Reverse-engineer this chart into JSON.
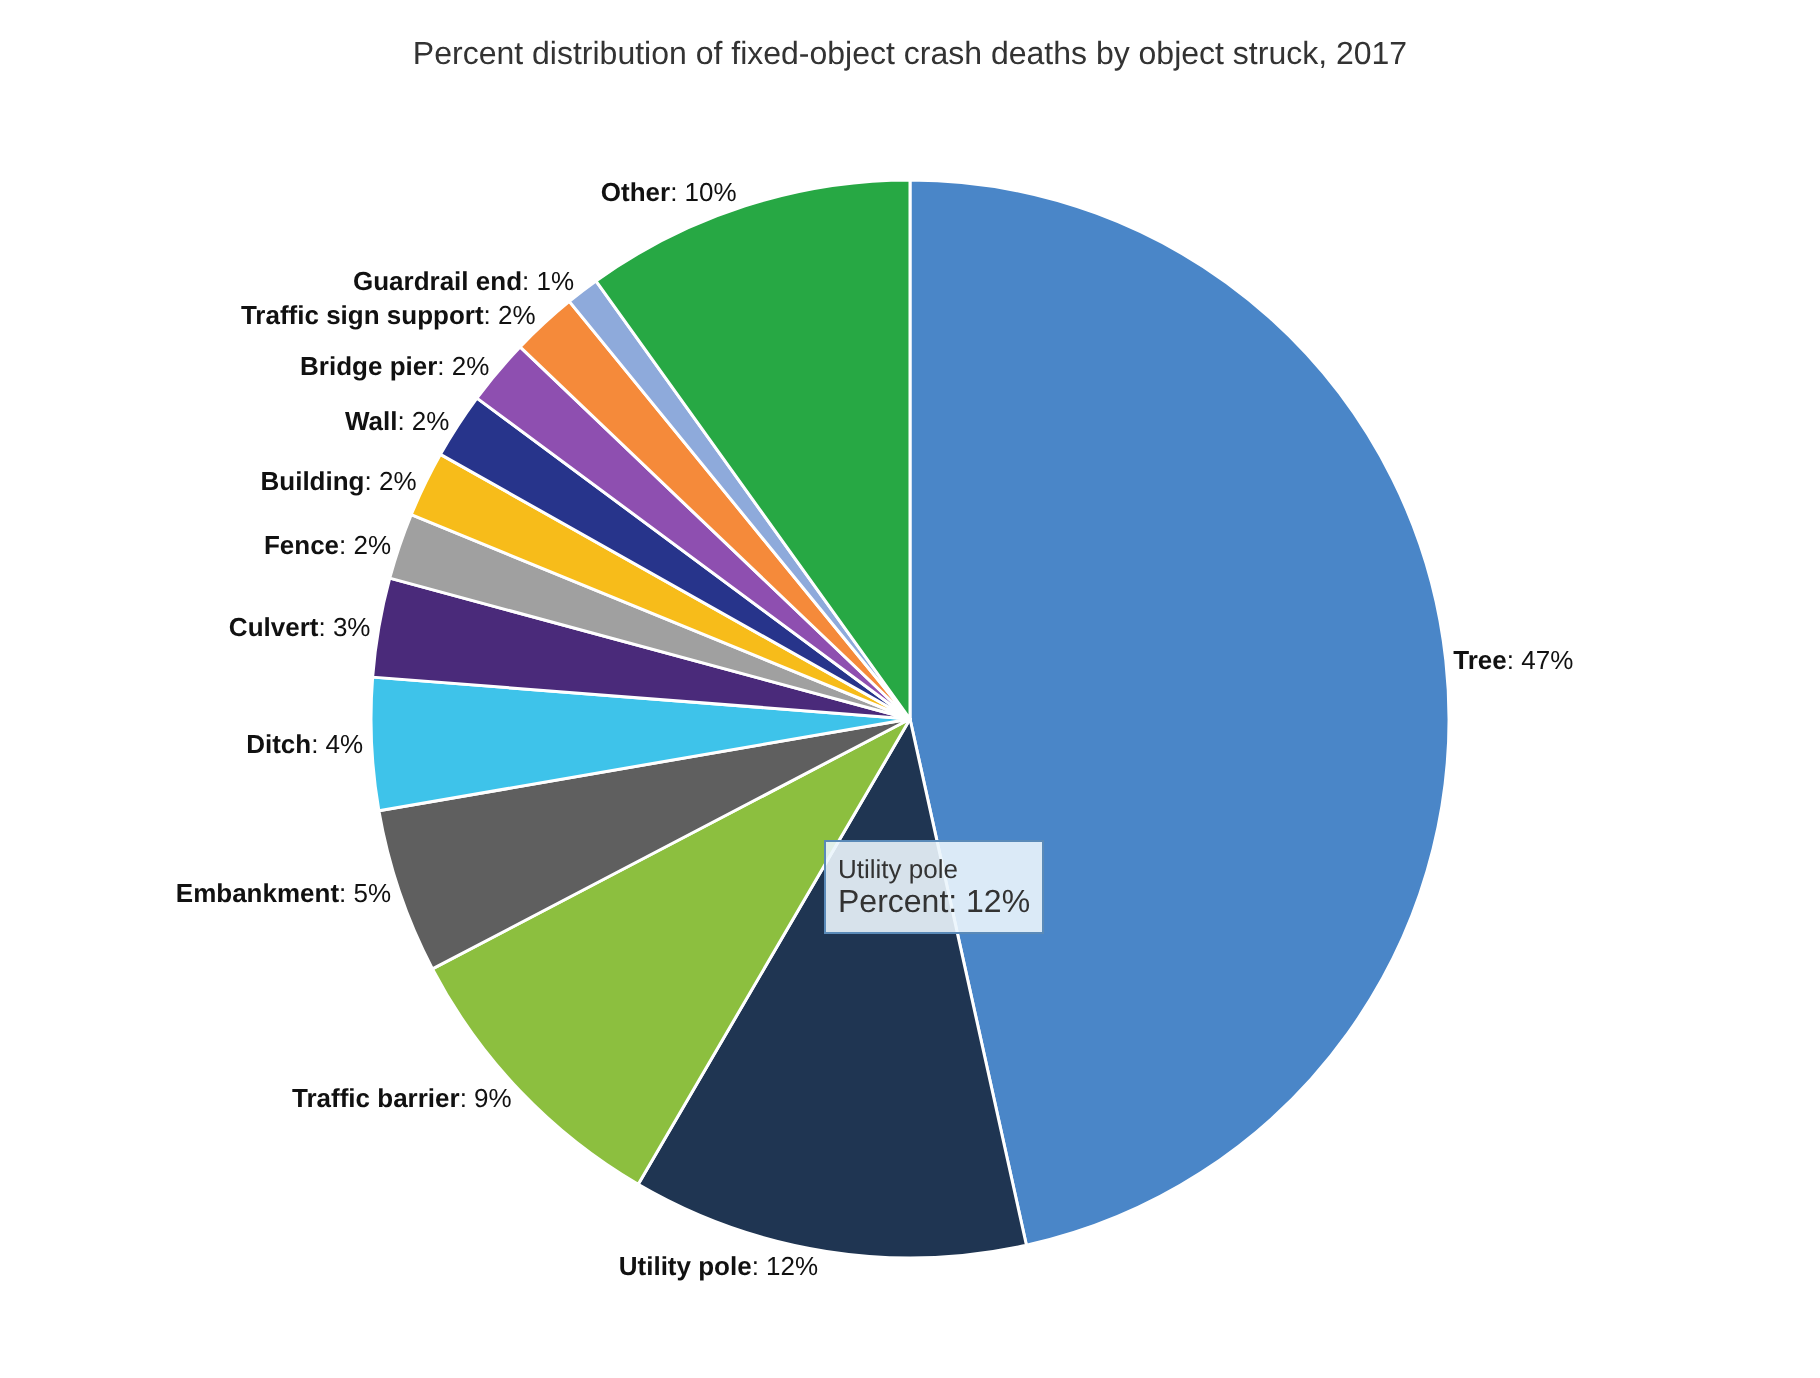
{
  "chart_data": {
    "type": "pie",
    "title": "Percent distribution of fixed-object crash deaths by object struck, 2017",
    "categories": [
      "Tree",
      "Utility pole",
      "Traffic barrier",
      "Embankment",
      "Ditch",
      "Culvert",
      "Fence",
      "Building",
      "Wall",
      "Bridge pier",
      "Traffic sign support",
      "Guardrail end",
      "Other"
    ],
    "values": [
      47,
      12,
      9,
      5,
      4,
      3,
      2,
      2,
      2,
      2,
      2,
      1,
      10
    ],
    "value_labels": [
      ": 47%",
      ": 12%",
      ": 9%",
      ": 5%",
      ": 4%",
      ": 3%",
      ": 2%",
      ": 2%",
      ": 2%",
      ": 2%",
      ": 2%",
      ": 1%",
      ": 10%"
    ],
    "colors": [
      "#4a86c8",
      "#1f3552",
      "#8cbf3f",
      "#5f5f5f",
      "#3ec3ea",
      "#4a2a7a",
      "#a0a0a0",
      "#f7bc1a",
      "#27348b",
      "#8e4fb0",
      "#f58a3a",
      "#8eaadb",
      "#27a844"
    ],
    "annotations": [
      "Utility pole\nPercent: 12%"
    ],
    "legend": false
  }
}
